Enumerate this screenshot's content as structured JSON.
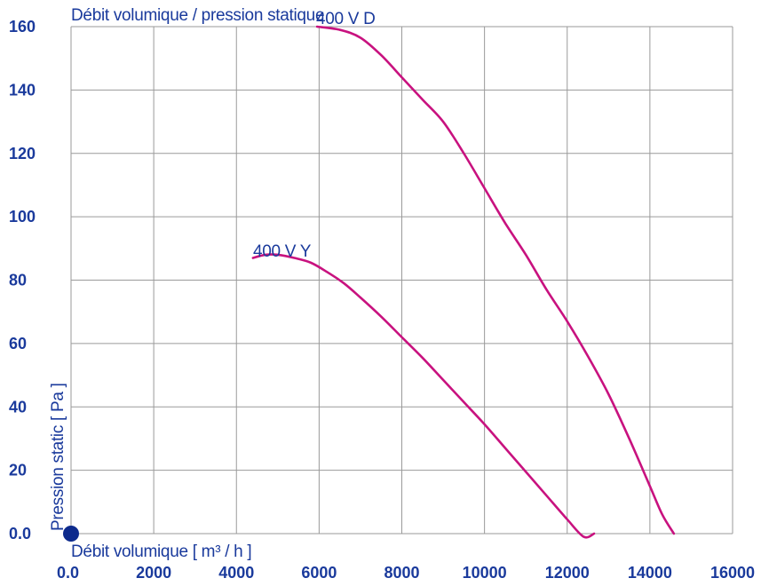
{
  "chart_data": {
    "type": "line",
    "title": "Débit volumique / pression statique",
    "xlabel": "Débit volumique [ m³ / h ]",
    "ylabel": "Pression static [ Pa ]",
    "xlim": [
      0,
      16000
    ],
    "ylim": [
      0,
      160
    ],
    "x_ticks": [
      0,
      2000,
      4000,
      6000,
      8000,
      10000,
      12000,
      14000,
      16000
    ],
    "x_tick_labels": [
      "0.0",
      "2000",
      "4000",
      "6000",
      "8000",
      "10000",
      "12000",
      "14000",
      "16000"
    ],
    "y_ticks": [
      0,
      20,
      40,
      60,
      80,
      100,
      120,
      140,
      160
    ],
    "y_tick_labels": [
      "0.0",
      "20",
      "40",
      "60",
      "80",
      "100",
      "120",
      "140",
      "160"
    ],
    "grid": true,
    "origin_marker": true,
    "series": [
      {
        "name": "400 V D",
        "color": "#c8127f",
        "x": [
          5950,
          6500,
          7000,
          7500,
          8000,
          8500,
          9000,
          9500,
          10000,
          10500,
          11000,
          11500,
          12000,
          12500,
          13000,
          13500,
          14000,
          14300,
          14580
        ],
        "y": [
          160,
          159,
          156.5,
          151,
          144,
          137,
          130,
          120,
          109,
          98,
          88,
          77,
          67,
          56,
          44,
          30,
          15,
          6,
          0
        ]
      },
      {
        "name": "400 V Y",
        "color": "#c8127f",
        "x": [
          4400,
          4700,
          5000,
          5400,
          5800,
          6200,
          6600,
          7000,
          7500,
          8000,
          8500,
          9000,
          9500,
          10000,
          10500,
          11000,
          11500,
          12000,
          12400,
          12650
        ],
        "y": [
          87,
          88,
          88,
          87,
          85.5,
          82.5,
          79,
          74.5,
          68.5,
          62,
          55.5,
          48.5,
          41.5,
          34.5,
          27,
          19.5,
          12,
          4.5,
          -1,
          0
        ]
      }
    ]
  }
}
